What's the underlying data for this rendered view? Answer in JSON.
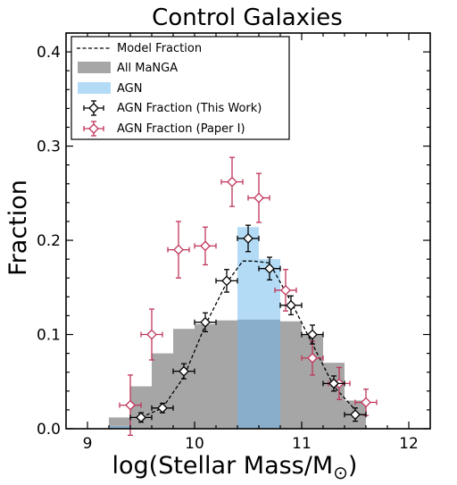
{
  "chart_data": {
    "type": "histogram",
    "title": "Control Galaxies",
    "xlabel": "log(Stellar Mass/M",
    "xlabel_subscript": "⊙",
    "ylabel": "Fraction",
    "xlim": [
      8.8,
      12.2
    ],
    "ylim": [
      0.0,
      0.42
    ],
    "xticks": [
      "9",
      "10",
      "11",
      "12"
    ],
    "xtick_values": [
      9,
      10,
      11,
      12
    ],
    "yticks": [
      "0.0",
      "0.1",
      "0.2",
      "0.3",
      "0.4"
    ],
    "ytick_values": [
      0.0,
      0.1,
      0.2,
      0.3,
      0.4
    ],
    "legend_position": "upper-left",
    "legend": {
      "model": "Model Fraction",
      "all_manga": "All MaNGA",
      "agn": "AGN",
      "this_work": "AGN Fraction (This Work)",
      "paper1": "AGN Fraction (Paper I)"
    },
    "colors": {
      "all_manga": "#a6a6a6",
      "agn": "#b3dbf6",
      "overlap": "#89aecb",
      "paper1": "#c0365a",
      "this_work": "#000000"
    },
    "bin_edges": [
      9.2,
      9.4,
      9.6,
      9.8,
      10.0,
      10.2,
      10.4,
      10.6,
      10.8,
      11.0,
      11.2,
      11.4,
      11.6
    ],
    "all_manga_heights": [
      0.012,
      0.045,
      0.08,
      0.106,
      0.111,
      0.115,
      0.116,
      0.116,
      0.114,
      0.1,
      0.07,
      0.03
    ],
    "agn_heights": [
      0.003,
      0.0,
      0.0,
      0.0,
      0.0,
      0.0,
      0.214,
      0.18,
      0.0,
      0.0,
      0.0,
      0.0
    ],
    "model_fraction": {
      "x": [
        9.5,
        9.7,
        9.9,
        10.1,
        10.3,
        10.45,
        10.55,
        10.7,
        10.9,
        11.1,
        11.3,
        11.5
      ],
      "y": [
        0.012,
        0.022,
        0.055,
        0.11,
        0.155,
        0.178,
        0.178,
        0.176,
        0.135,
        0.09,
        0.045,
        0.02
      ]
    },
    "this_work": {
      "x": [
        9.5,
        9.7,
        9.9,
        10.1,
        10.3,
        10.5,
        10.7,
        10.9,
        11.1,
        11.3,
        11.5
      ],
      "y": [
        0.012,
        0.022,
        0.061,
        0.113,
        0.157,
        0.202,
        0.17,
        0.131,
        0.1,
        0.048,
        0.015
      ],
      "xerr": 0.1,
      "yerr": [
        0.005,
        0.005,
        0.008,
        0.01,
        0.012,
        0.014,
        0.012,
        0.01,
        0.01,
        0.008,
        0.007
      ]
    },
    "paper1": {
      "x": [
        9.4,
        9.6,
        9.85,
        10.1,
        10.35,
        10.6,
        10.85,
        11.1,
        11.35,
        11.6
      ],
      "y": [
        0.025,
        0.1,
        0.19,
        0.194,
        0.262,
        0.245,
        0.147,
        0.075,
        0.048,
        0.028
      ],
      "xerr": 0.1,
      "yerr": [
        0.032,
        0.027,
        0.03,
        0.02,
        0.026,
        0.026,
        0.022,
        0.018,
        0.017,
        0.014
      ]
    }
  }
}
